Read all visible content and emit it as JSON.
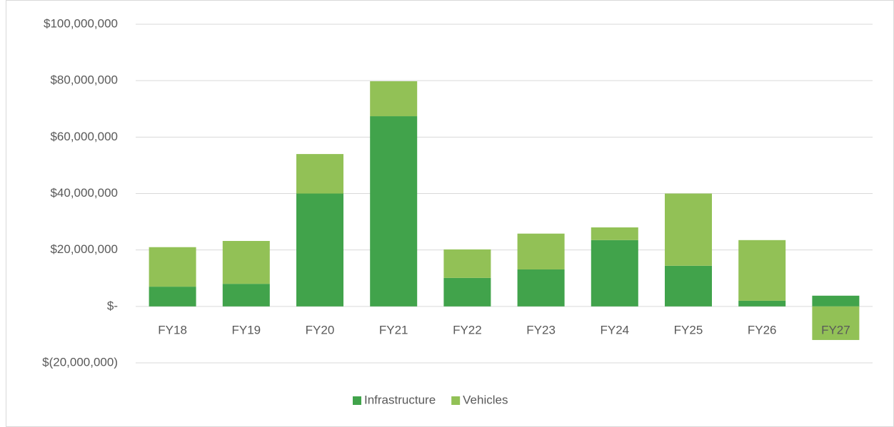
{
  "chart_data": {
    "type": "stacked-bar",
    "categories": [
      "FY18",
      "FY19",
      "FY20",
      "FY21",
      "FY22",
      "FY23",
      "FY24",
      "FY25",
      "FY26",
      "FY27"
    ],
    "series": [
      {
        "name": "Infrastructure",
        "color": "#41a34b",
        "values": [
          7000000,
          8000000,
          40000000,
          67400000,
          10100000,
          13100000,
          23500000,
          14400000,
          2000000,
          3800000
        ]
      },
      {
        "name": "Vehicles",
        "color": "#92c156",
        "values": [
          14000000,
          15200000,
          14000000,
          12400000,
          10100000,
          12700000,
          4500000,
          25600000,
          21500000,
          -11900000
        ]
      }
    ],
    "ylim": [
      -20000000,
      100000000
    ],
    "yticks": [
      {
        "value": -20000000,
        "label": "$(20,000,000)"
      },
      {
        "value": 0,
        "label": "$-"
      },
      {
        "value": 20000000,
        "label": "$20,000,000"
      },
      {
        "value": 40000000,
        "label": "$40,000,000"
      },
      {
        "value": 60000000,
        "label": "$60,000,000"
      },
      {
        "value": 80000000,
        "label": "$80,000,000"
      },
      {
        "value": 100000000,
        "label": "$100,000,000"
      }
    ],
    "grid": true,
    "legend": "bottom"
  }
}
